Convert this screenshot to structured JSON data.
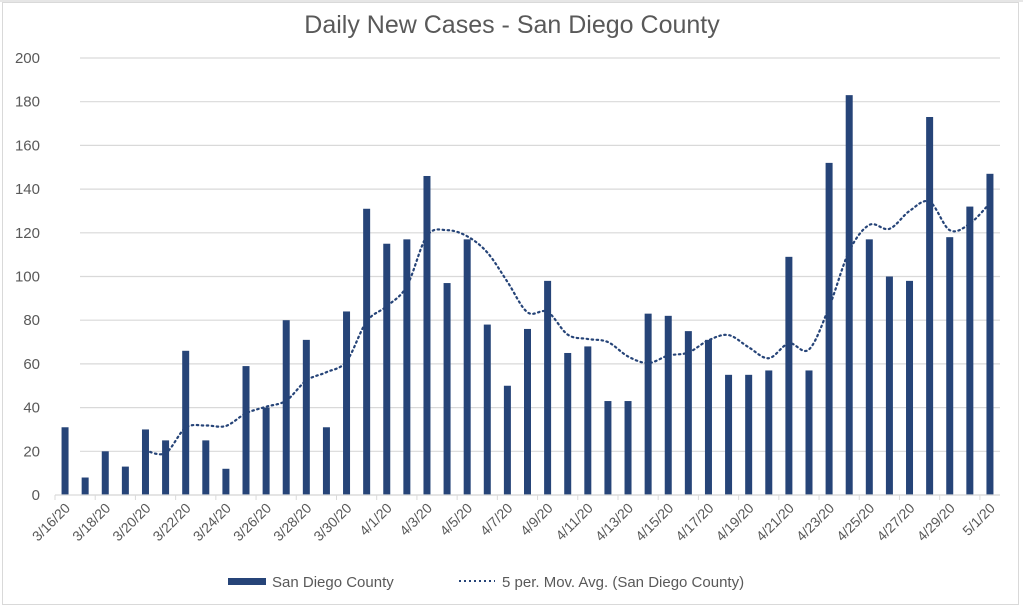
{
  "chart_data": {
    "type": "bar",
    "title": "Daily New Cases - San Diego County",
    "xlabel": "",
    "ylabel": "",
    "ylim": [
      0,
      200
    ],
    "yticks": [
      0,
      20,
      40,
      60,
      80,
      100,
      120,
      140,
      160,
      180,
      200
    ],
    "grid": true,
    "legend_position": "bottom",
    "categories": [
      "3/16/20",
      "3/17/20",
      "3/18/20",
      "3/19/20",
      "3/20/20",
      "3/21/20",
      "3/22/20",
      "3/23/20",
      "3/24/20",
      "3/25/20",
      "3/26/20",
      "3/27/20",
      "3/28/20",
      "3/29/20",
      "3/30/20",
      "3/31/20",
      "4/1/20",
      "4/2/20",
      "4/3/20",
      "4/4/20",
      "4/5/20",
      "4/6/20",
      "4/7/20",
      "4/8/20",
      "4/9/20",
      "4/10/20",
      "4/11/20",
      "4/12/20",
      "4/13/20",
      "4/14/20",
      "4/15/20",
      "4/16/20",
      "4/17/20",
      "4/18/20",
      "4/19/20",
      "4/20/20",
      "4/21/20",
      "4/22/20",
      "4/23/20",
      "4/24/20",
      "4/25/20",
      "4/26/20",
      "4/27/20",
      "4/28/20",
      "4/29/20",
      "4/30/20",
      "5/1/20"
    ],
    "xtick_labels": [
      "3/16/20",
      "3/18/20",
      "3/20/20",
      "3/22/20",
      "3/24/20",
      "3/26/20",
      "3/28/20",
      "3/30/20",
      "4/1/20",
      "4/3/20",
      "4/5/20",
      "4/7/20",
      "4/9/20",
      "4/11/20",
      "4/13/20",
      "4/15/20",
      "4/17/20",
      "4/19/20",
      "4/21/20",
      "4/23/20",
      "4/25/20",
      "4/27/20",
      "4/29/20",
      "5/1/20"
    ],
    "series": [
      {
        "name": "San Diego County",
        "type": "bar",
        "color": "#264478",
        "values": [
          31,
          8,
          20,
          13,
          30,
          25,
          66,
          25,
          12,
          59,
          40,
          80,
          71,
          31,
          84,
          131,
          115,
          117,
          146,
          97,
          117,
          78,
          50,
          76,
          98,
          65,
          68,
          43,
          43,
          83,
          82,
          75,
          71,
          55,
          55,
          57,
          109,
          57,
          152,
          183,
          117,
          100,
          98,
          173,
          118,
          132,
          147
        ]
      },
      {
        "name": "5 per. Mov. Avg. (San Diego County)",
        "type": "line",
        "style": "dotted",
        "color": "#264478",
        "period": 5
      }
    ]
  },
  "colors": {
    "bar": "#264478",
    "grid": "#d9d9d9",
    "text": "#595959"
  }
}
